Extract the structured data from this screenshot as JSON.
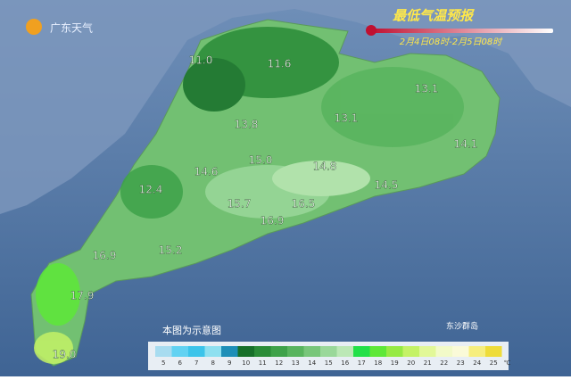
{
  "header": {
    "logo": "广东天气",
    "title": "最低气温预报",
    "subtitle": "2月4日08时-2月5日08时"
  },
  "labels": [
    "11.0",
    "11.6",
    "13.8",
    "13.1",
    "13.1",
    "14.1",
    "15.0",
    "14.6",
    "14.8",
    "12.4",
    "14.5",
    "15.7",
    "16.5",
    "16.9",
    "16.9",
    "15.2",
    "17.9",
    "19.0"
  ],
  "note": "本图为示意图",
  "island": "东沙群岛",
  "legend": {
    "unit": "℃",
    "items": [
      {
        "label": 5,
        "color": "#a8dcf0"
      },
      {
        "label": 6,
        "color": "#62d2f2"
      },
      {
        "label": 7,
        "color": "#3cc4ea"
      },
      {
        "label": 8,
        "color": "#8ee0f0"
      },
      {
        "label": 9,
        "color": "#1e8fb8"
      },
      {
        "label": 10,
        "color": "#17702a"
      },
      {
        "label": 11,
        "color": "#2a8c38"
      },
      {
        "label": 12,
        "color": "#3ea24a"
      },
      {
        "label": 13,
        "color": "#58b45e"
      },
      {
        "label": 14,
        "color": "#78c67a"
      },
      {
        "label": 15,
        "color": "#9ad89a"
      },
      {
        "label": 16,
        "color": "#bce8b6"
      },
      {
        "label": 17,
        "color": "#22e048"
      },
      {
        "label": 18,
        "color": "#5ee838"
      },
      {
        "label": 19,
        "color": "#96ea44"
      },
      {
        "label": 20,
        "color": "#c4f266"
      },
      {
        "label": 21,
        "color": "#e2f898"
      },
      {
        "label": 22,
        "color": "#f2fac8"
      },
      {
        "label": 23,
        "color": "#fafad8"
      },
      {
        "label": 24,
        "color": "#f6ee7e"
      },
      {
        "label": 25,
        "color": "#eedc3a"
      }
    ]
  }
}
